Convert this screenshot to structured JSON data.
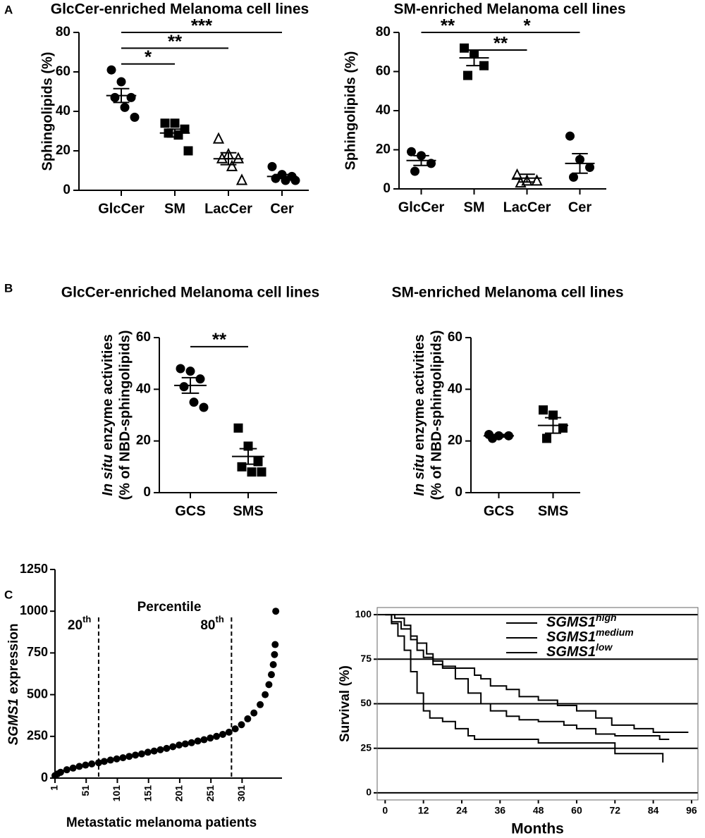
{
  "panel_labels": [
    "A",
    "B",
    "C"
  ],
  "chart_data": [
    {
      "type": "dot",
      "title": "GlcCer-enriched Melanoma cell lines",
      "ylabel": "Sphingolipids (%)",
      "categories": [
        "GlcCer",
        "SM",
        "LacCer",
        "Cer"
      ],
      "markers": [
        "circle",
        "square",
        "triangle",
        "circle"
      ],
      "points": [
        [
          61,
          55,
          47,
          47,
          42,
          37
        ],
        [
          34,
          34,
          31,
          29,
          28,
          20
        ],
        [
          26,
          18,
          16,
          16,
          12,
          5
        ],
        [
          12,
          8,
          7,
          6,
          5,
          5
        ]
      ],
      "means": [
        48,
        29,
        16,
        7
      ],
      "sems": [
        3.5,
        2,
        3,
        1
      ],
      "ylim": [
        0,
        80
      ],
      "yticks": [
        0,
        20,
        40,
        60,
        80
      ],
      "color": "#000000",
      "comparisons": [
        {
          "from": 0,
          "to": 1,
          "y": 64,
          "label": "*"
        },
        {
          "from": 0,
          "to": 2,
          "y": 72,
          "label": "**"
        },
        {
          "from": 0,
          "to": 3,
          "y": 80,
          "label": "***"
        }
      ]
    },
    {
      "type": "dot",
      "title": "SM-enriched Melanoma cell lines",
      "ylabel": "Sphingolipids (%)",
      "categories": [
        "GlcCer",
        "SM",
        "LacCer",
        "Cer"
      ],
      "markers": [
        "circle",
        "square",
        "triangle",
        "circle"
      ],
      "points": [
        [
          19,
          17,
          13,
          9
        ],
        [
          72,
          69,
          63,
          58
        ],
        [
          7,
          4,
          4,
          3
        ],
        [
          27,
          15,
          11,
          6
        ]
      ],
      "means": [
        14.5,
        67,
        5.5,
        13
      ],
      "sems": [
        2.5,
        4,
        2,
        5
      ],
      "ylim": [
        0,
        80
      ],
      "yticks": [
        0,
        20,
        40,
        60,
        80
      ],
      "color": "#000000",
      "comparisons": [
        {
          "from": 0,
          "to": 1,
          "y": 80,
          "label": "**"
        },
        {
          "from": 1,
          "to": 3,
          "y": 80,
          "label": "*"
        },
        {
          "from": 1,
          "to": 2,
          "y": 71,
          "label": "**"
        }
      ]
    },
    {
      "type": "dot",
      "title": "GlcCer-enriched Melanoma cell lines",
      "ylabel_italic": "In situ",
      "ylabel": "enzyme activities",
      "ylabel2": "(% of NBD-sphingolipids)",
      "categories": [
        "GCS",
        "SMS"
      ],
      "markers": [
        "circle",
        "square"
      ],
      "points": [
        [
          48,
          47,
          44,
          41,
          35,
          33
        ],
        [
          25,
          18,
          12,
          10,
          8,
          8
        ]
      ],
      "means": [
        41.5,
        14
      ],
      "sems": [
        3,
        3
      ],
      "ylim": [
        0,
        60
      ],
      "yticks": [
        0,
        20,
        40,
        60
      ],
      "color": "#000000",
      "comparisons": [
        {
          "from": 0,
          "to": 1,
          "y": 56.5,
          "label": "**"
        }
      ]
    },
    {
      "type": "dot",
      "title": "SM-enriched Melanoma cell lines",
      "ylabel_italic": "In situ",
      "ylabel": "enzyme activities",
      "ylabel2": "(% of NBD-sphingolipids)",
      "categories": [
        "GCS",
        "SMS"
      ],
      "markers": [
        "circle",
        "square"
      ],
      "points": [
        [
          22.5,
          22,
          22,
          21
        ],
        [
          32,
          30,
          25,
          21
        ]
      ],
      "means": [
        22,
        26
      ],
      "sems": [
        0.5,
        3
      ],
      "ylim": [
        0,
        60
      ],
      "yticks": [
        0,
        20,
        40,
        60
      ],
      "color": "#000000",
      "comparisons": []
    },
    {
      "type": "scatter",
      "title": "Percentile",
      "xlabel": "Metastatic melanoma patients",
      "ylabel_italic": "SGMS1",
      "ylabel": "expression",
      "color": "#000000",
      "x": [
        1,
        5,
        10,
        20,
        30,
        40,
        50,
        60,
        71,
        80,
        90,
        100,
        110,
        120,
        130,
        140,
        150,
        160,
        170,
        180,
        190,
        200,
        210,
        220,
        230,
        240,
        250,
        260,
        270,
        280,
        290,
        300,
        310,
        320,
        330,
        338,
        344,
        348,
        351,
        353,
        354,
        355
      ],
      "values": [
        15,
        25,
        35,
        50,
        60,
        70,
        78,
        85,
        92,
        100,
        108,
        115,
        122,
        130,
        138,
        145,
        155,
        162,
        170,
        178,
        188,
        198,
        205,
        212,
        222,
        230,
        240,
        250,
        262,
        275,
        295,
        320,
        355,
        390,
        440,
        500,
        560,
        620,
        680,
        740,
        800,
        1000
      ],
      "xlim": [
        1,
        365
      ],
      "xticks": [
        1,
        51,
        101,
        151,
        201,
        251,
        301
      ],
      "ylim": [
        0,
        1250
      ],
      "yticks": [
        0,
        250,
        500,
        750,
        1000,
        1250
      ],
      "cutoffs": [
        {
          "text": "20",
          "sup": "th",
          "x": 71
        },
        {
          "text": "80",
          "sup": "th",
          "x": 284
        }
      ]
    },
    {
      "type": "step",
      "xlabel": "Months",
      "ylabel": "Survival (%)",
      "xlim": [
        -2.5,
        98
      ],
      "xticks": [
        0,
        12,
        24,
        36,
        48,
        60,
        72,
        84,
        96
      ],
      "ylim": [
        -4,
        104
      ],
      "yticks": [
        0,
        25,
        50,
        75,
        100
      ],
      "grid": true,
      "series": [
        {
          "name": "SGMS1",
          "sup": "high",
          "color": "#000000",
          "x": [
            0,
            3,
            6,
            8,
            10,
            13,
            15,
            18,
            22,
            26,
            28,
            30,
            33,
            38,
            42,
            48,
            54,
            60,
            66,
            71,
            78,
            84,
            95
          ],
          "values": [
            100,
            98,
            94,
            88,
            84,
            78,
            74,
            71,
            70,
            70,
            66,
            64,
            60,
            58,
            54,
            52,
            49,
            46,
            42,
            38,
            36,
            34,
            34
          ]
        },
        {
          "name": "SGMS1",
          "sup": "medium",
          "color": "#777777",
          "x": [
            0,
            2,
            5,
            8,
            10,
            12,
            15,
            18,
            22,
            26,
            30,
            33,
            38,
            42,
            48,
            56,
            60,
            66,
            72,
            80,
            86,
            89
          ],
          "values": [
            100,
            96,
            92,
            86,
            80,
            76,
            72,
            70,
            64,
            56,
            50,
            46,
            43,
            41,
            40,
            38,
            36,
            33,
            32,
            32,
            30,
            30
          ]
        },
        {
          "name": "SGMS1",
          "sup": "low",
          "color": "#cccccc",
          "x": [
            0,
            2,
            4,
            6,
            8,
            10,
            12,
            14,
            18,
            22,
            26,
            28,
            34,
            42,
            48,
            60,
            72,
            80,
            87,
            87
          ],
          "values": [
            100,
            95,
            88,
            80,
            68,
            56,
            46,
            42,
            40,
            36,
            32,
            30,
            30,
            30,
            28,
            28,
            22,
            22,
            22,
            17
          ]
        }
      ]
    }
  ]
}
